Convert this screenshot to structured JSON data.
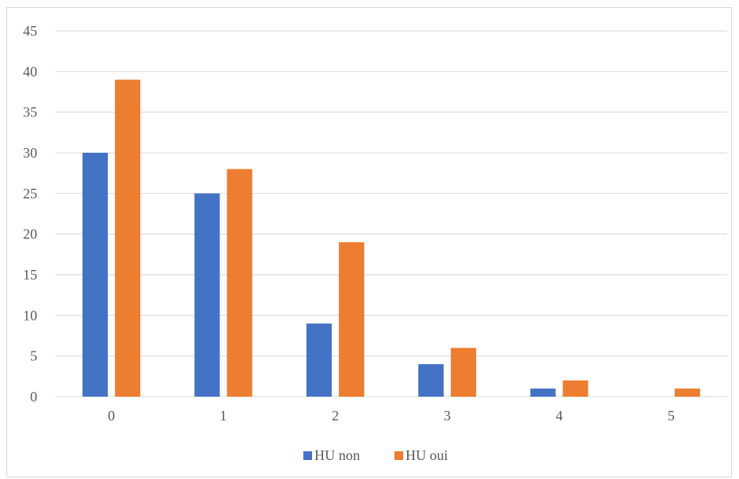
{
  "chart_data": {
    "type": "bar",
    "categories": [
      "0",
      "1",
      "2",
      "3",
      "4",
      "5"
    ],
    "series": [
      {
        "name": "HU non",
        "values": [
          30,
          25,
          9,
          4,
          1,
          0
        ]
      },
      {
        "name": "HU oui",
        "values": [
          39,
          28,
          19,
          6,
          2,
          1
        ]
      }
    ],
    "ylim": [
      0,
      45
    ],
    "yticks": [
      "0",
      "5",
      "10",
      "15",
      "20",
      "25",
      "30",
      "35",
      "40",
      "45"
    ],
    "grid": true,
    "legend_position": "bottom",
    "colors": {
      "HU non": "#4472c4",
      "HU oui": "#ed7d31",
      "grid": "#d9d9d9",
      "text": "#595959"
    }
  }
}
